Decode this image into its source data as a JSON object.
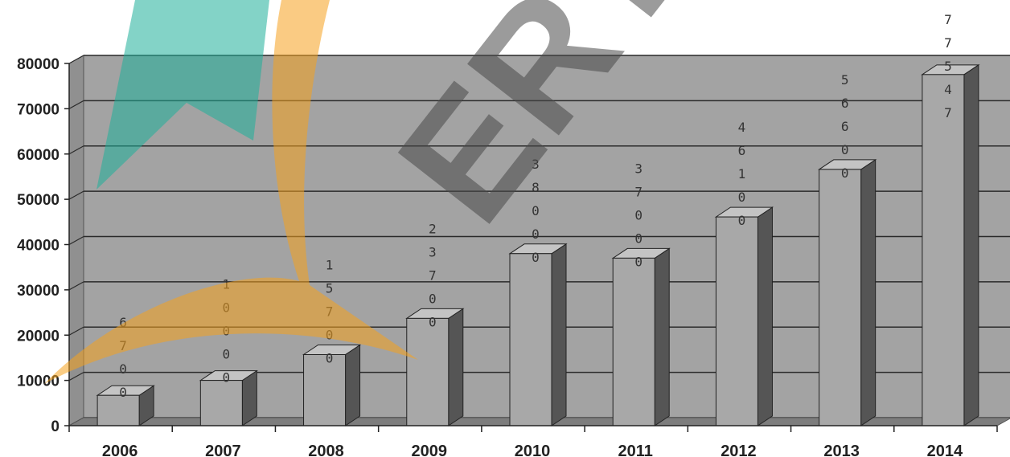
{
  "chart_data": {
    "type": "bar",
    "categories": [
      "2006",
      "2007",
      "2008",
      "2009",
      "2010",
      "2011",
      "2012",
      "2013",
      "2014"
    ],
    "values": [
      6700,
      10000,
      15700,
      23700,
      38000,
      37000,
      46100,
      56600,
      77547
    ],
    "data_labels": [
      "6700",
      "10000",
      "15700",
      "23700",
      "38000",
      "37000",
      "46100",
      "56600",
      "77547"
    ],
    "yticks": [
      "80000",
      "70000",
      "60000",
      "50000",
      "40000",
      "30000",
      "20000",
      "10000",
      "0"
    ],
    "ylim": [
      0,
      80000
    ],
    "grid": true,
    "style": "3d-column",
    "colors": {
      "bar_front": "#a8a8a8",
      "bar_side": "#555555",
      "bar_top": "#c4c4c4",
      "wall": "#a3a3a3",
      "grid": "#2a2a2a"
    }
  }
}
